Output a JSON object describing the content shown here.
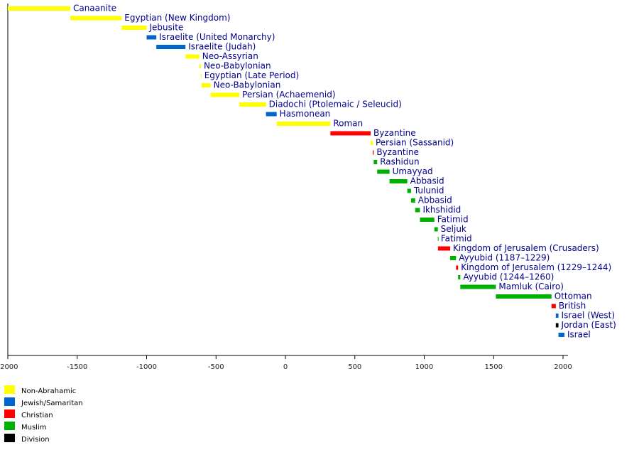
{
  "chart_data": {
    "type": "timeline",
    "xlim": [
      -2000,
      2000
    ],
    "xticks": [
      -2000,
      -1500,
      -1000,
      -500,
      0,
      500,
      1000,
      1500,
      2000
    ],
    "groups": [
      {
        "name": "Non-Abrahamic",
        "color": "#ffff00"
      },
      {
        "name": "Jewish/Samaritan",
        "color": "#0066cc"
      },
      {
        "name": "Christian",
        "color": "#ff0000"
      },
      {
        "name": "Muslim",
        "color": "#00b000"
      },
      {
        "name": "Division",
        "color": "#000000"
      }
    ],
    "bars": [
      {
        "label": "Canaanite",
        "start": -2000,
        "end": -1550,
        "group": 0
      },
      {
        "label": "Egyptian (New Kingdom)",
        "start": -1550,
        "end": -1180,
        "group": 0
      },
      {
        "label": "Jebusite",
        "start": -1180,
        "end": -1000,
        "group": 0
      },
      {
        "label": "Israelite (United Monarchy)",
        "start": -1000,
        "end": -930,
        "group": 1
      },
      {
        "label": "Israelite (Judah)",
        "start": -930,
        "end": -720,
        "group": 1
      },
      {
        "label": "Neo-Assyrian",
        "start": -720,
        "end": -620,
        "group": 0
      },
      {
        "label": "Neo-Babylonian",
        "start": -620,
        "end": -609,
        "group": 0
      },
      {
        "label": "Egyptian (Late Period)",
        "start": -609,
        "end": -605,
        "group": 0
      },
      {
        "label": "Neo-Babylonian",
        "start": -605,
        "end": -539,
        "group": 0
      },
      {
        "label": "Persian (Achaemenid)",
        "start": -539,
        "end": -332,
        "group": 0
      },
      {
        "label": "Diadochi (Ptolemaic / Seleucid)",
        "start": -332,
        "end": -140,
        "group": 0
      },
      {
        "label": "Hasmonean",
        "start": -140,
        "end": -63,
        "group": 1
      },
      {
        "label": "Roman",
        "start": -63,
        "end": 324,
        "group": 0
      },
      {
        "label": "Byzantine",
        "start": 324,
        "end": 614,
        "group": 2
      },
      {
        "label": "Persian (Sassanid)",
        "start": 614,
        "end": 629,
        "group": 0
      },
      {
        "label": "Byzantine",
        "start": 629,
        "end": 636,
        "group": 2
      },
      {
        "label": "Rashidun",
        "start": 636,
        "end": 661,
        "group": 3
      },
      {
        "label": "Umayyad",
        "start": 661,
        "end": 750,
        "group": 3
      },
      {
        "label": "Abbasid",
        "start": 750,
        "end": 878,
        "group": 3
      },
      {
        "label": "Tulunid",
        "start": 878,
        "end": 905,
        "group": 3
      },
      {
        "label": "Abbasid",
        "start": 905,
        "end": 935,
        "group": 3
      },
      {
        "label": "Ikhshidid",
        "start": 935,
        "end": 969,
        "group": 3
      },
      {
        "label": "Fatimid",
        "start": 969,
        "end": 1073,
        "group": 3
      },
      {
        "label": "Seljuk",
        "start": 1073,
        "end": 1098,
        "group": 3
      },
      {
        "label": "Fatimid",
        "start": 1098,
        "end": 1099,
        "group": 3
      },
      {
        "label": "Kingdom of Jerusalem (Crusaders)",
        "start": 1099,
        "end": 1187,
        "group": 2
      },
      {
        "label": "Ayyubid (1187–1229)",
        "start": 1187,
        "end": 1229,
        "group": 3
      },
      {
        "label": "Kingdom of Jerusalem (1229–1244)",
        "start": 1229,
        "end": 1244,
        "group": 2
      },
      {
        "label": "Ayyubid (1244–1260)",
        "start": 1244,
        "end": 1260,
        "group": 3
      },
      {
        "label": "Mamluk (Cairo)",
        "start": 1260,
        "end": 1516,
        "group": 3
      },
      {
        "label": "Ottoman",
        "start": 1516,
        "end": 1917,
        "group": 3
      },
      {
        "label": "British",
        "start": 1917,
        "end": 1948,
        "group": 2
      },
      {
        "label": "Israel (West)",
        "start": 1948,
        "end": 1967,
        "group": 1
      },
      {
        "label": "Jordan (East)",
        "start": 1948,
        "end": 1967,
        "group": 4
      },
      {
        "label": "Israel",
        "start": 1967,
        "end": 2010,
        "group": 1
      }
    ]
  }
}
